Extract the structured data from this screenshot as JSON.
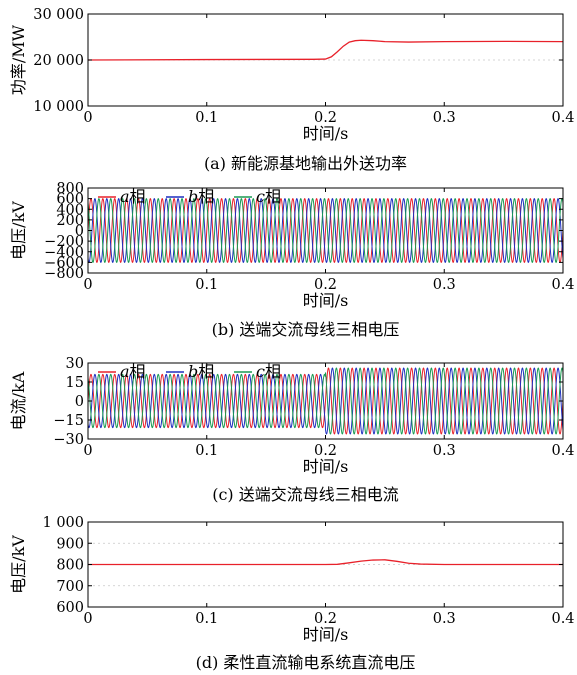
{
  "colors": {
    "a": "#e8212a",
    "b": "#1f2fbf",
    "c": "#1a9a52",
    "power": "#e8212a",
    "dc": "#e8212a"
  },
  "chart_data": [
    {
      "id": "a",
      "type": "line",
      "caption": "(a) 新能源基地输出外送功率",
      "xlabel": "时间/s",
      "ylabel": "功率/MW",
      "xlim": [
        0,
        0.4
      ],
      "ylim": [
        10000,
        30000
      ],
      "xticks": [
        "0",
        "0.1",
        "0.2",
        "0.3",
        "0.4"
      ],
      "yticks": [
        "10 000",
        "20 000",
        "30 000"
      ],
      "grid": true,
      "series": [
        {
          "values_x": [
            0,
            0.1,
            0.19,
            0.2,
            0.205,
            0.21,
            0.215,
            0.22,
            0.225,
            0.23,
            0.24,
            0.25,
            0.27,
            0.3,
            0.35,
            0.4
          ],
          "values_y": [
            20000,
            20100,
            20150,
            20200,
            20700,
            21800,
            23000,
            23900,
            24200,
            24300,
            24200,
            24000,
            23900,
            24000,
            24050,
            24000
          ]
        }
      ]
    },
    {
      "id": "b",
      "type": "line",
      "caption": "(b) 送端交流母线三相电压",
      "xlabel": "时间/s",
      "ylabel": "电压/kV",
      "xlim": [
        0,
        0.4
      ],
      "ylim": [
        -800,
        800
      ],
      "xticks": [
        "0",
        "0.1",
        "0.2",
        "0.3",
        "0.4"
      ],
      "yticks": [
        "800",
        "600",
        "400",
        "200",
        "0",
        "−200",
        "−400",
        "−600",
        "−800"
      ],
      "legend": [
        {
          "letter": "a",
          "suffix": "相"
        },
        {
          "letter": "b",
          "suffix": "相"
        },
        {
          "letter": "c",
          "suffix": "相"
        }
      ],
      "legend_position": "top-left",
      "waveform": {
        "kind": "three-phase sine",
        "frequency_hz": 100,
        "amplitude": 600
      }
    },
    {
      "id": "c",
      "type": "line",
      "caption": "(c) 送端交流母线三相电流",
      "xlabel": "时间/s",
      "ylabel": "电流/kA",
      "xlim": [
        0,
        0.4
      ],
      "ylim": [
        -30,
        30
      ],
      "xticks": [
        "0",
        "0.1",
        "0.2",
        "0.3",
        "0.4"
      ],
      "yticks": [
        "30",
        "15",
        "0",
        "−15",
        "−30"
      ],
      "legend": [
        {
          "letter": "a",
          "suffix": "相"
        },
        {
          "letter": "b",
          "suffix": "相"
        },
        {
          "letter": "c",
          "suffix": "相"
        }
      ],
      "legend_position": "top-left",
      "waveform": {
        "kind": "three-phase sine",
        "frequency_hz": 100,
        "amplitude_before": 21,
        "amplitude_after": 26,
        "step_time": 0.2
      }
    },
    {
      "id": "d",
      "type": "line",
      "caption": "(d) 柔性直流输电系统直流电压",
      "xlabel": "时间/s",
      "ylabel": "电压/kV",
      "xlim": [
        0,
        0.4
      ],
      "ylim": [
        600,
        1000
      ],
      "xticks": [
        "0",
        "0.1",
        "0.2",
        "0.3",
        "0.4"
      ],
      "yticks": [
        "600",
        "700",
        "800",
        "900",
        "1 000"
      ],
      "grid": true,
      "series": [
        {
          "values_x": [
            0,
            0.1,
            0.2,
            0.21,
            0.22,
            0.23,
            0.24,
            0.25,
            0.26,
            0.27,
            0.28,
            0.3,
            0.32,
            0.35,
            0.4
          ],
          "values_y": [
            800,
            800,
            800,
            801,
            808,
            816,
            821,
            822,
            815,
            806,
            802,
            800,
            800,
            800,
            800
          ]
        }
      ]
    }
  ]
}
